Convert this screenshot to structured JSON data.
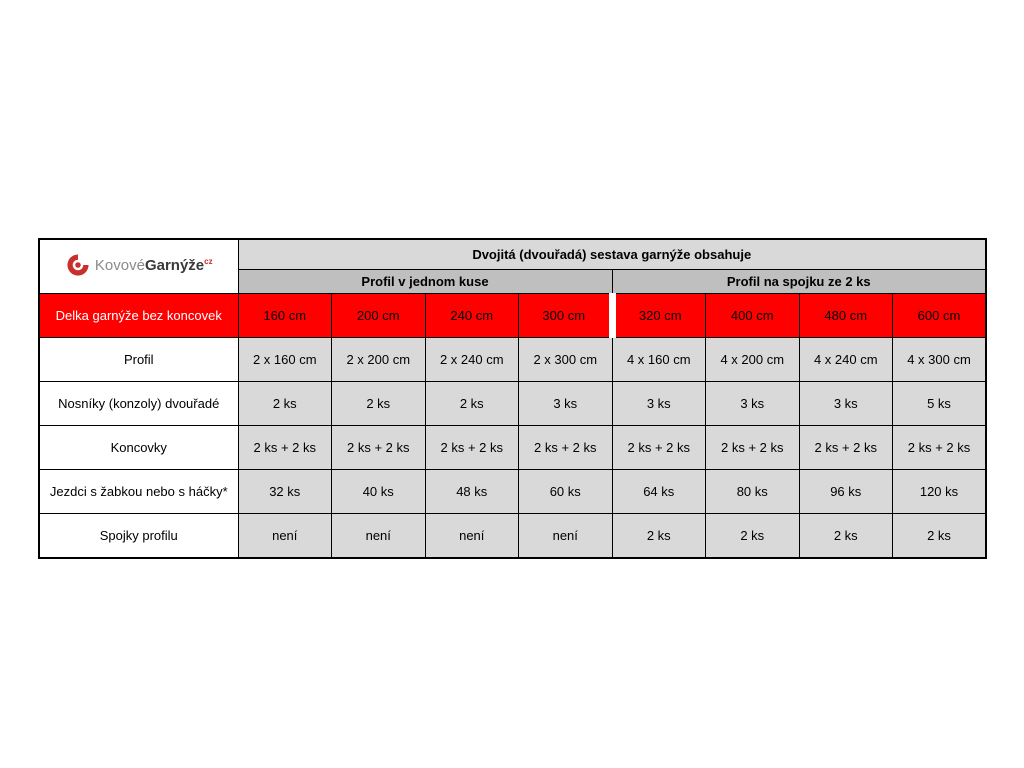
{
  "logo": {
    "part1": "Kovové",
    "part2": "Garnýže",
    "tld": "cz",
    "icon": "kovove-garnyze-logo-icon",
    "brand_red": "#c9302c"
  },
  "table": {
    "title": "Dvojitá (dvouřadá) sestava garnýže obsahuje",
    "group_headers": [
      "Profil v jednom kuse",
      "Profil na spojku ze 2 ks"
    ],
    "colors": {
      "highlight_red": "#ff0000",
      "cell_gray": "#d9d9d9",
      "subheader_gray": "#bfbfbf",
      "border_black": "#000000"
    },
    "rows": [
      {
        "label": "Delka garnýže bez koncovek",
        "type": "red",
        "values": [
          "160 cm",
          "200 cm",
          "240 cm",
          "300 cm",
          "320 cm",
          "400 cm",
          "480 cm",
          "600 cm"
        ]
      },
      {
        "label": "Profil",
        "type": "normal",
        "values": [
          "2 x 160 cm",
          "2 x 200 cm",
          "2 x 240 cm",
          "2 x 300 cm",
          "4 x 160 cm",
          "4 x 200 cm",
          "4 x 240 cm",
          "4 x 300 cm"
        ]
      },
      {
        "label": "Nosníky (konzoly) dvouřadé",
        "type": "normal",
        "values": [
          "2 ks",
          "2 ks",
          "2 ks",
          "3 ks",
          "3 ks",
          "3 ks",
          "3 ks",
          "5 ks"
        ]
      },
      {
        "label": "Koncovky",
        "type": "normal",
        "values": [
          "2 ks + 2 ks",
          "2 ks + 2 ks",
          "2 ks + 2 ks",
          "2 ks + 2 ks",
          "2 ks + 2 ks",
          "2 ks + 2 ks",
          "2 ks + 2 ks",
          "2 ks + 2 ks"
        ]
      },
      {
        "label": "Jezdci s žabkou nebo s háčky*",
        "type": "normal",
        "values": [
          "32 ks",
          "40 ks",
          "48 ks",
          "60 ks",
          "64 ks",
          "80 ks",
          "96 ks",
          "120 ks"
        ]
      },
      {
        "label": "Spojky profilu",
        "type": "normal",
        "values": [
          "není",
          "není",
          "není",
          "není",
          "2 ks",
          "2 ks",
          "2 ks",
          "2 ks"
        ]
      }
    ]
  }
}
